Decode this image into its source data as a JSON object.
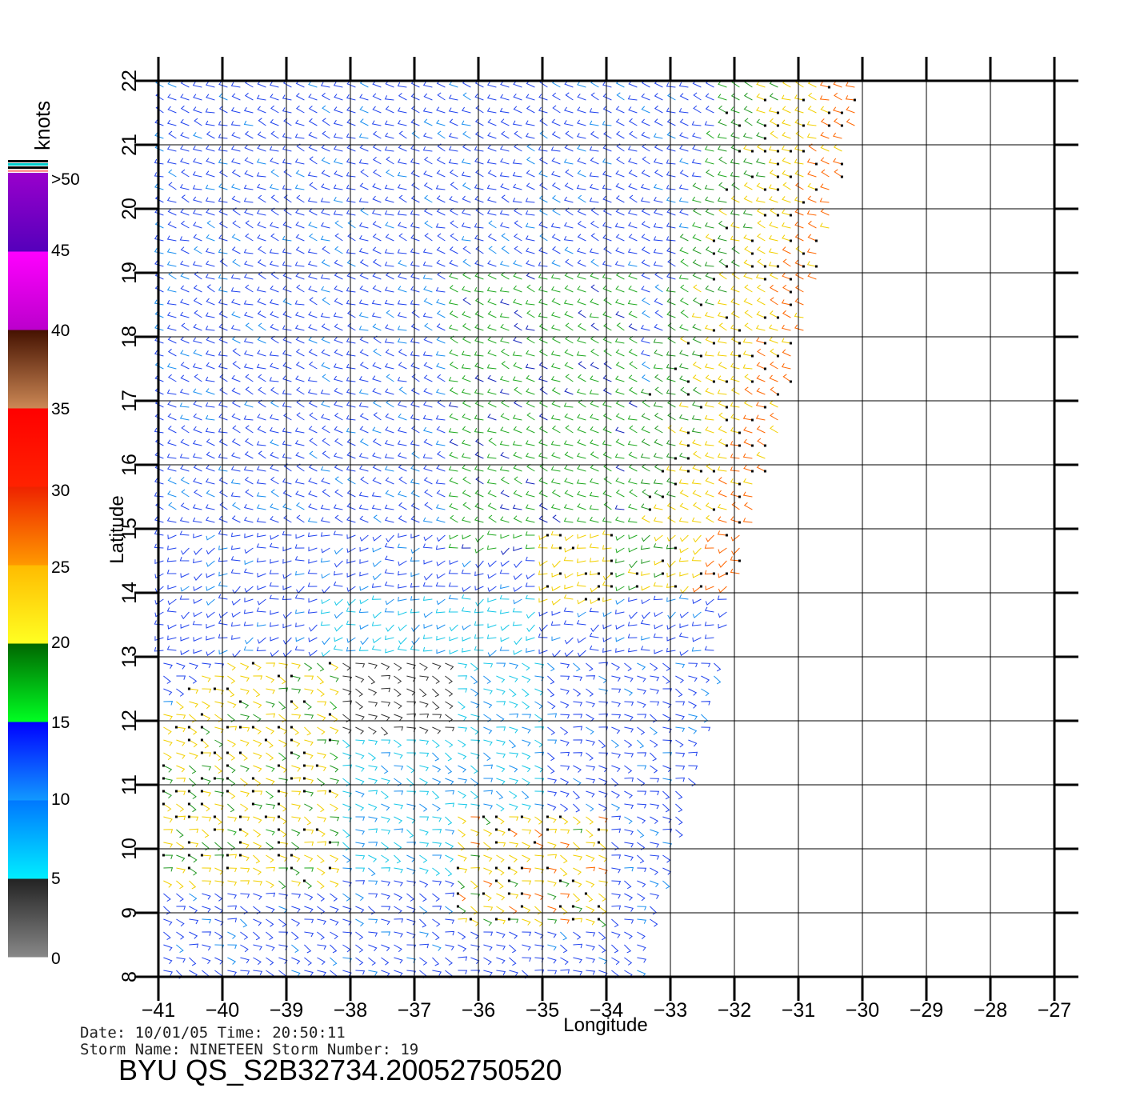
{
  "colorbar": {
    "unit_label": "knots",
    "tick_labels": [
      ">50",
      "45",
      "40",
      "35",
      "30",
      "25",
      "20",
      "15",
      "10",
      "5",
      "0"
    ],
    "bands": [
      {
        "from": 0,
        "to": 5,
        "top_color": "#222222",
        "bottom_color": "#888888"
      },
      {
        "from": 5,
        "to": 10,
        "top_color": "#0077ff",
        "bottom_color": "#00eeff"
      },
      {
        "from": 10,
        "to": 15,
        "top_color": "#0000ff",
        "bottom_color": "#1199ff"
      },
      {
        "from": 15,
        "to": 20,
        "top_color": "#006600",
        "bottom_color": "#00ff22"
      },
      {
        "from": 20,
        "to": 25,
        "top_color": "#ffbb00",
        "bottom_color": "#ffff22"
      },
      {
        "from": 25,
        "to": 30,
        "top_color": "#ee2200",
        "bottom_color": "#ff9900"
      },
      {
        "from": 30,
        "to": 35,
        "top_color": "#ff0000",
        "bottom_color": "#ff2200"
      },
      {
        "from": 35,
        "to": 40,
        "top_color": "#441100",
        "bottom_color": "#cc8855"
      },
      {
        "from": 40,
        "to": 45,
        "top_color": "#ff00ff",
        "bottom_color": "#bb00cc"
      },
      {
        "from": 45,
        "to": 50,
        "top_color": "#9900cc",
        "bottom_color": "#5500bb"
      }
    ],
    "top_stripes": [
      "#000000",
      "#00cccc",
      "#000000",
      "#ff9999"
    ]
  },
  "map": {
    "x_axis_label": "Longitude",
    "y_axis_label": "Latitude",
    "lon_ticks": [
      -41,
      -40,
      -39,
      -38,
      -37,
      -36,
      -35,
      -34,
      -33,
      -32,
      -31,
      -30,
      -29,
      -28,
      -27
    ],
    "lat_ticks": [
      8,
      9,
      10,
      11,
      12,
      13,
      14,
      15,
      16,
      17,
      18,
      19,
      20,
      21,
      22
    ],
    "lon_range": [
      -41,
      -27
    ],
    "lat_range": [
      8,
      22
    ],
    "swath_corners": {
      "top_left": [
        -41,
        22
      ],
      "top_right": [
        -29.9,
        22
      ],
      "bottom_right": [
        -33.5,
        8
      ],
      "bottom_left": [
        -41,
        8
      ]
    }
  },
  "info": {
    "line1": "Date: 10/01/05   Time: 20:50:11",
    "line2": "Storm  Name: NINETEEN    Storm  Number: 19",
    "file_id": "BYU  QS_S2B32734.20052750520"
  }
}
